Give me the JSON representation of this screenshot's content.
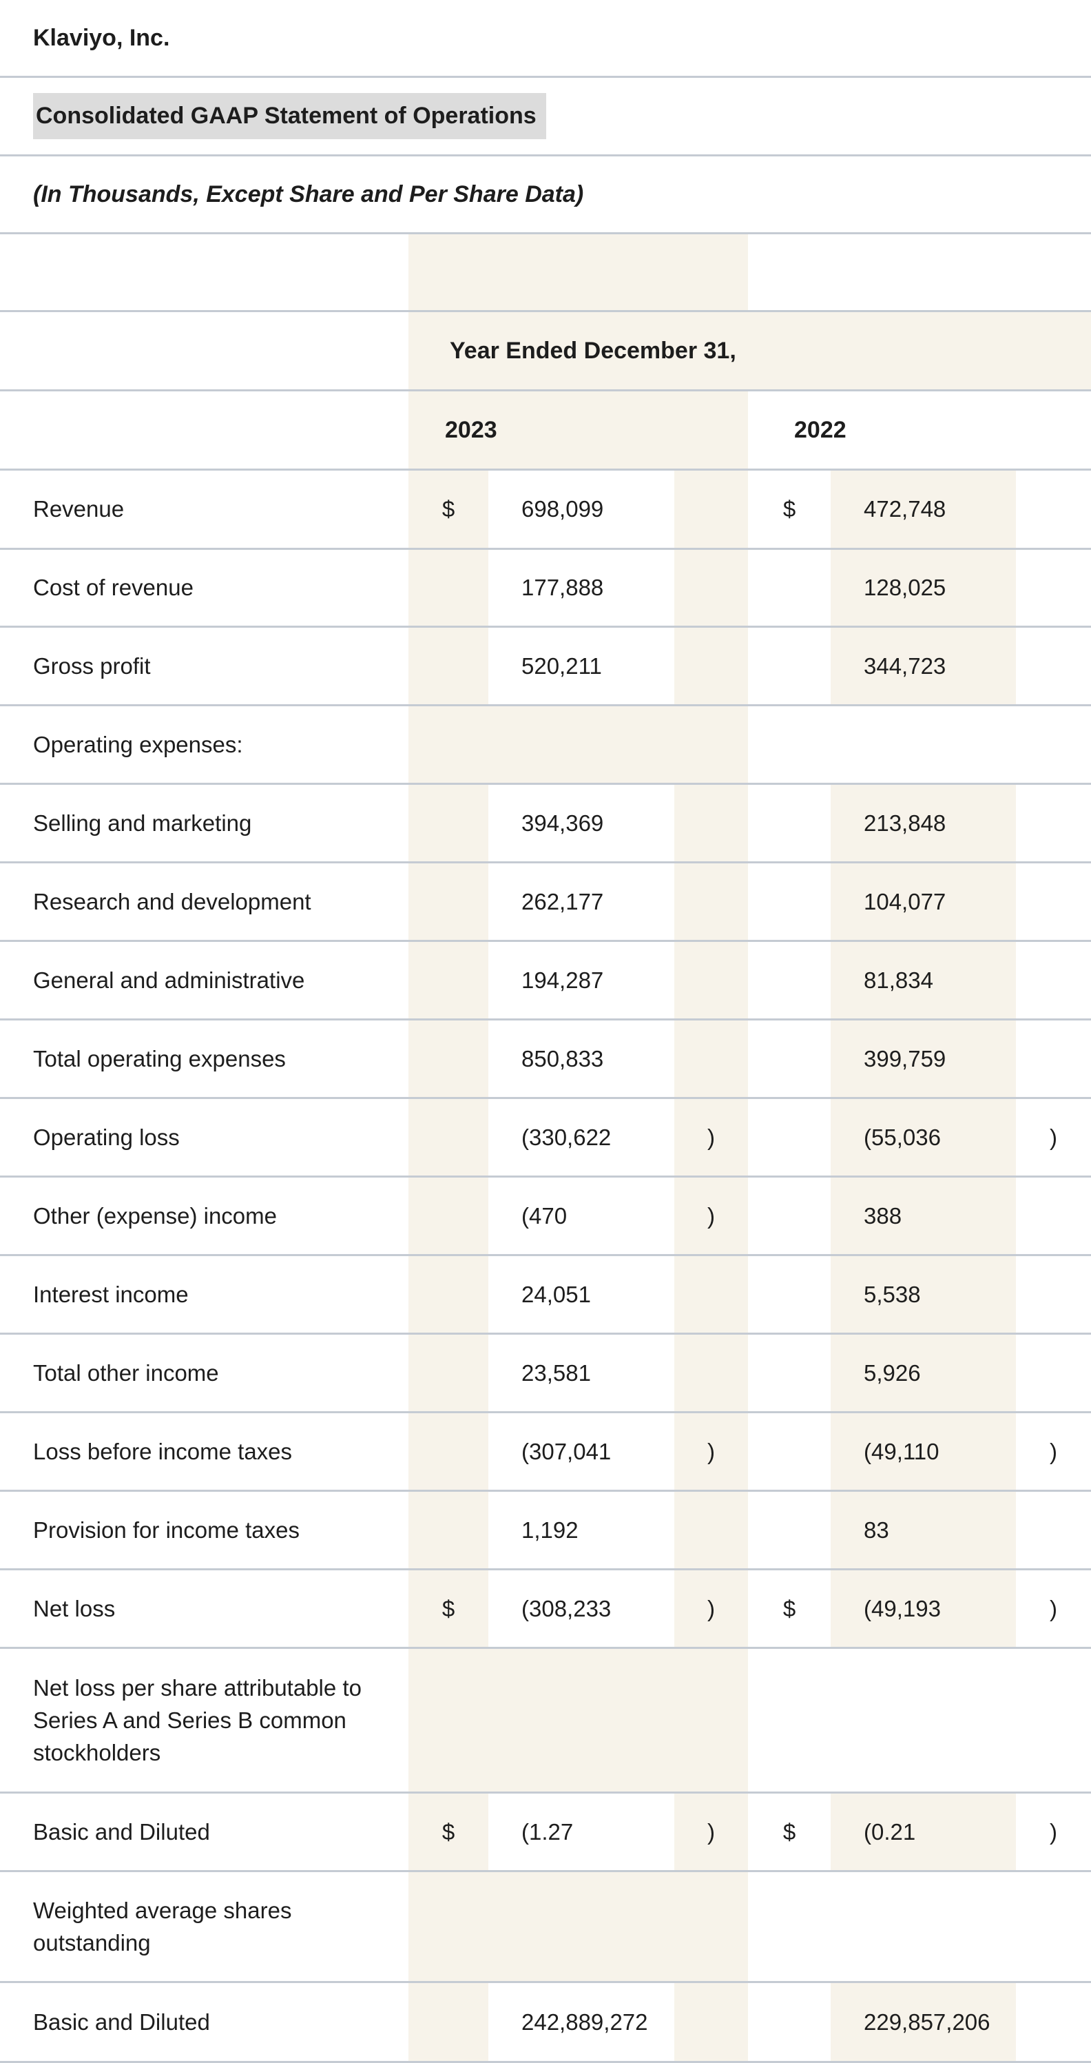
{
  "header": {
    "company": "Klaviyo, Inc.",
    "title": "Consolidated GAAP Statement of Operations",
    "subtitle": "(In Thousands, Except Share and Per Share Data)"
  },
  "table": {
    "period_header": "Year Ended December 31,",
    "col_2023": "2023",
    "col_2022": "2022",
    "rows": [
      {
        "label": "Revenue",
        "d2023": "$",
        "v2023": "698,099",
        "p2023": "",
        "d2022": "$",
        "v2022": "472,748",
        "p2022": ""
      },
      {
        "label": "Cost of revenue",
        "d2023": "",
        "v2023": "177,888",
        "p2023": "",
        "d2022": "",
        "v2022": "128,025",
        "p2022": ""
      },
      {
        "label": "Gross profit",
        "d2023": "",
        "v2023": "520,211",
        "p2023": "",
        "d2022": "",
        "v2022": "344,723",
        "p2022": ""
      },
      {
        "label": "Operating expenses:"
      },
      {
        "label": "Selling and marketing",
        "d2023": "",
        "v2023": "394,369",
        "p2023": "",
        "d2022": "",
        "v2022": "213,848",
        "p2022": ""
      },
      {
        "label": "Research and development",
        "d2023": "",
        "v2023": "262,177",
        "p2023": "",
        "d2022": "",
        "v2022": "104,077",
        "p2022": ""
      },
      {
        "label": "General and administrative",
        "d2023": "",
        "v2023": "194,287",
        "p2023": "",
        "d2022": "",
        "v2022": "81,834",
        "p2022": ""
      },
      {
        "label": "Total operating expenses",
        "d2023": "",
        "v2023": "850,833",
        "p2023": "",
        "d2022": "",
        "v2022": "399,759",
        "p2022": ""
      },
      {
        "label": "Operating loss",
        "d2023": "",
        "v2023": "(330,622",
        "p2023": ")",
        "d2022": "",
        "v2022": "(55,036",
        "p2022": ")"
      },
      {
        "label": "Other (expense) income",
        "d2023": "",
        "v2023": "(470",
        "p2023": ")",
        "d2022": "",
        "v2022": "388",
        "p2022": ""
      },
      {
        "label": "Interest income",
        "d2023": "",
        "v2023": "24,051",
        "p2023": "",
        "d2022": "",
        "v2022": "5,538",
        "p2022": ""
      },
      {
        "label": "Total other income",
        "d2023": "",
        "v2023": "23,581",
        "p2023": "",
        "d2022": "",
        "v2022": "5,926",
        "p2022": ""
      },
      {
        "label": "Loss before income taxes",
        "d2023": "",
        "v2023": "(307,041",
        "p2023": ")",
        "d2022": "",
        "v2022": "(49,110",
        "p2022": ")"
      },
      {
        "label": "Provision for income taxes",
        "d2023": "",
        "v2023": "1,192",
        "p2023": "",
        "d2022": "",
        "v2022": "83",
        "p2022": ""
      },
      {
        "label": "Net loss",
        "d2023": "$",
        "v2023": "(308,233",
        "p2023": ")",
        "d2022": "$",
        "v2022": "(49,193",
        "p2022": ")"
      },
      {
        "label_lines": [
          "Net loss per share attributable to",
          "Series A and Series B common",
          "stockholders"
        ]
      },
      {
        "label": "Basic and Diluted",
        "d2023": "$",
        "v2023": "(1.27",
        "p2023": ")",
        "d2022": "$",
        "v2022": "(0.21",
        "p2022": ")"
      },
      {
        "label_lines": [
          "Weighted average shares",
          "outstanding"
        ]
      },
      {
        "label": "Basic and Diluted",
        "d2023": "",
        "v2023": "242,889,272",
        "p2023": "",
        "d2022": "",
        "v2022": "229,857,206",
        "p2022": ""
      }
    ]
  },
  "colors": {
    "beige": "#f7f3ea",
    "border": "#c5cbd3",
    "highlight": "#dcdcdc",
    "ink": "#1d1d1d"
  }
}
